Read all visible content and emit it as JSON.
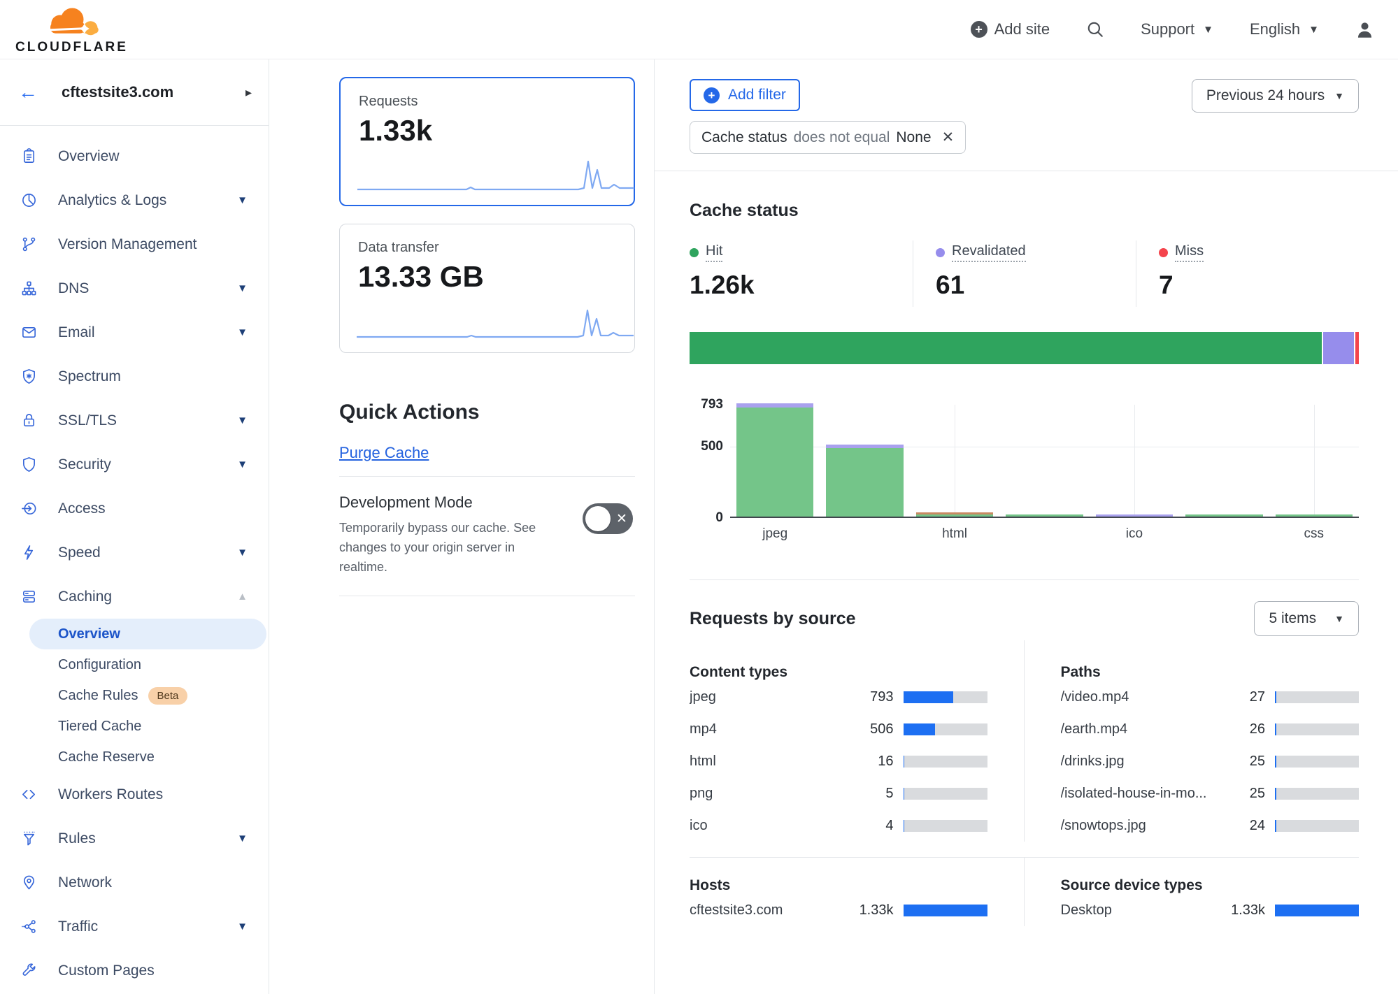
{
  "header": {
    "brand": "CLOUDFLARE",
    "add_site_label": "Add site",
    "support_label": "Support",
    "language_label": "English"
  },
  "sidebar": {
    "site_name": "cftestsite3.com",
    "items": [
      {
        "label": "Overview",
        "icon": "clipboard"
      },
      {
        "label": "Analytics & Logs",
        "icon": "pie",
        "caret": "down"
      },
      {
        "label": "Version Management",
        "icon": "branch"
      },
      {
        "label": "DNS",
        "icon": "dns",
        "caret": "down"
      },
      {
        "label": "Email",
        "icon": "email",
        "caret": "down"
      },
      {
        "label": "Spectrum",
        "icon": "spectrum"
      },
      {
        "label": "SSL/TLS",
        "icon": "lock",
        "caret": "down"
      },
      {
        "label": "Security",
        "icon": "shield",
        "caret": "down"
      },
      {
        "label": "Access",
        "icon": "access"
      },
      {
        "label": "Speed",
        "icon": "bolt",
        "caret": "down"
      },
      {
        "label": "Caching",
        "icon": "cache",
        "caret": "up",
        "children": [
          {
            "label": "Overview",
            "active": true
          },
          {
            "label": "Configuration"
          },
          {
            "label": "Cache Rules",
            "badge": "Beta"
          },
          {
            "label": "Tiered Cache"
          },
          {
            "label": "Cache Reserve"
          }
        ]
      },
      {
        "label": "Workers Routes",
        "icon": "code"
      },
      {
        "label": "Rules",
        "icon": "funnel",
        "caret": "down"
      },
      {
        "label": "Network",
        "icon": "pin"
      },
      {
        "label": "Traffic",
        "icon": "traffic",
        "caret": "down"
      },
      {
        "label": "Custom Pages",
        "icon": "wrench"
      }
    ]
  },
  "metrics": {
    "requests": {
      "label": "Requests",
      "value": "1.33k"
    },
    "data_transfer": {
      "label": "Data transfer",
      "value": "13.33 GB"
    }
  },
  "quick_actions": {
    "title": "Quick Actions",
    "purge_cache_label": "Purge Cache",
    "development_mode": {
      "title": "Development Mode",
      "description": "Temporarily bypass our cache. See changes to your origin server in realtime.",
      "state": "off"
    }
  },
  "filter_bar": {
    "add_filter_label": "Add filter",
    "time_range": "Previous 24 hours",
    "chip": {
      "field": "Cache status",
      "operator": "does not equal",
      "value": "None"
    }
  },
  "cache_status": {
    "title": "Cache status",
    "legend": [
      {
        "label": "Hit",
        "value": "1.26k",
        "count": 1260,
        "color": "#2fa45e"
      },
      {
        "label": "Revalidated",
        "value": "61",
        "count": 61,
        "color": "#968dec"
      },
      {
        "label": "Miss",
        "value": "7",
        "count": 7,
        "color": "#f4444c"
      }
    ]
  },
  "chart_data": {
    "type": "bar",
    "stacked": true,
    "title": "Cache status by content type",
    "ylim": [
      0,
      793
    ],
    "y_ticks": [
      {
        "label": "793",
        "value": 793
      },
      {
        "label": "500",
        "value": 500
      },
      {
        "label": "0",
        "value": 0
      }
    ],
    "categories": [
      "jpeg",
      "mp4",
      "html",
      "png",
      "ico",
      "jpg",
      "css"
    ],
    "x_tick_labels": [
      "jpeg",
      "html",
      "ico",
      "css"
    ],
    "x_tick_slots": [
      0,
      2,
      4,
      6
    ],
    "series": [
      {
        "name": "Hit",
        "color": "#74c589",
        "values": [
          762,
          481,
          9,
          5,
          0,
          1,
          1
        ]
      },
      {
        "name": "Revalidated",
        "color": "#a9a1ee",
        "values": [
          31,
          25,
          0,
          0,
          4,
          0,
          0
        ]
      },
      {
        "name": "Miss",
        "color": "#c98a63",
        "values": [
          0,
          0,
          7,
          0,
          0,
          0,
          0
        ]
      }
    ],
    "grid": true,
    "legend_position": "none"
  },
  "requests_by_source": {
    "title": "Requests by source",
    "items_dropdown": "5 items",
    "total": 1330,
    "content_types": {
      "title": "Content types",
      "rows": [
        {
          "label": "jpeg",
          "value": "793",
          "count": 793
        },
        {
          "label": "mp4",
          "value": "506",
          "count": 506
        },
        {
          "label": "html",
          "value": "16",
          "count": 16
        },
        {
          "label": "png",
          "value": "5",
          "count": 5
        },
        {
          "label": "ico",
          "value": "4",
          "count": 4
        }
      ]
    },
    "paths": {
      "title": "Paths",
      "rows": [
        {
          "label": "/video.mp4",
          "value": "27",
          "count": 27
        },
        {
          "label": "/earth.mp4",
          "value": "26",
          "count": 26
        },
        {
          "label": "/drinks.jpg",
          "value": "25",
          "count": 25
        },
        {
          "label": "/isolated-house-in-mo...",
          "value": "25",
          "count": 25
        },
        {
          "label": "/snowtops.jpg",
          "value": "24",
          "count": 24
        }
      ]
    },
    "hosts": {
      "title": "Hosts",
      "rows": [
        {
          "label": "cftestsite3.com",
          "value": "1.33k",
          "count": 1330
        }
      ]
    },
    "device_types": {
      "title": "Source device types",
      "rows": [
        {
          "label": "Desktop",
          "value": "1.33k",
          "count": 1330
        }
      ]
    }
  },
  "colors": {
    "accent_blue": "#2468e8",
    "bar_blue": "#1d6ff2",
    "hit_green": "#2fa45e",
    "revalidated_purple": "#968dec",
    "miss_red": "#f4444c",
    "logo_orange": "#F6821F",
    "logo_orange_light": "#FBAD41"
  }
}
